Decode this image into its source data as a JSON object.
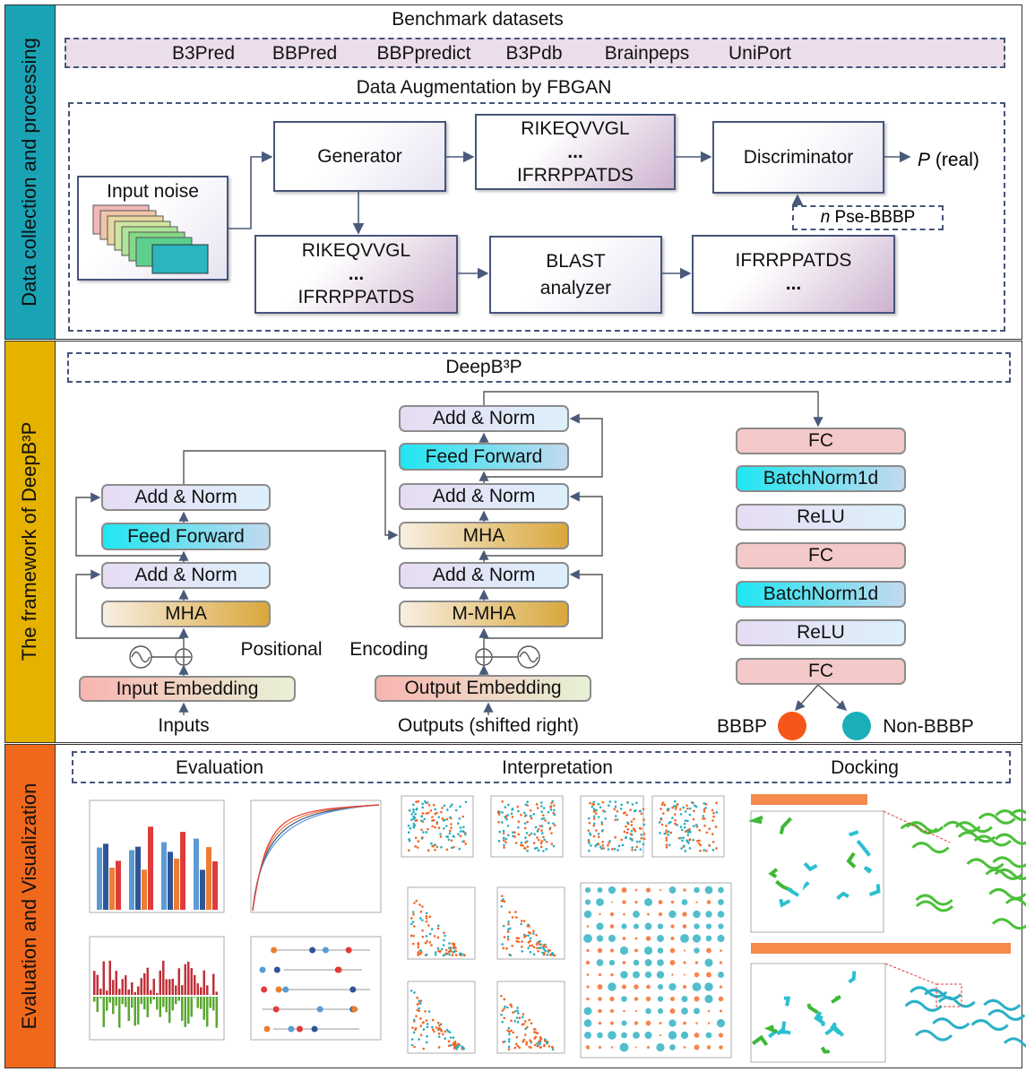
{
  "sections": [
    {
      "label": "Data collection and processing"
    },
    {
      "label": "The framework of DeepB³P"
    },
    {
      "label": "Evaluation and Visualization"
    }
  ],
  "benchmark": {
    "title": "Benchmark datasets",
    "datasets": [
      "B3Pred",
      "BBPred",
      "BBPpredict",
      "B3Pdb",
      "Brainpeps",
      "UniPort"
    ]
  },
  "augmentation": {
    "title": "Data Augmentation by FBGAN",
    "input_noise": "Input noise",
    "generator": "Generator",
    "discriminator": "Discriminator",
    "output_var": "P",
    "output_text": "(real)",
    "feedback_var": "n",
    "feedback_text": "Pse-BBBP",
    "blast": "BLAST analyzer",
    "generated": [
      "RIKEQVVGL",
      "...",
      "IFRRPPATDS"
    ],
    "candidates": [
      "RIKEQVVGL",
      "...",
      "IFRRPPATDS"
    ],
    "filtered": [
      "IFRRPPATDS",
      "..."
    ]
  },
  "framework": {
    "title": "DeepB³P",
    "encoder": {
      "layers": [
        "Add & Norm",
        "Feed Forward",
        "Add & Norm",
        "MHA"
      ],
      "embedding": "Input Embedding",
      "input": "Inputs"
    },
    "positional": [
      "Positional",
      "Encoding"
    ],
    "decoder": {
      "layers": [
        "Add & Norm",
        "Feed Forward",
        "Add & Norm",
        "MHA",
        "Add & Norm",
        "M-MHA"
      ],
      "embedding": "Output Embedding",
      "input": "Outputs (shifted right)"
    },
    "head": [
      "FC",
      "BatchNorm1d",
      "ReLU",
      "FC",
      "BatchNorm1d",
      "ReLU",
      "FC"
    ],
    "classes": [
      "BBBP",
      "Non-BBBP"
    ]
  },
  "visualization": {
    "headings": [
      "Evaluation",
      "Interpretation",
      "Docking"
    ]
  }
}
